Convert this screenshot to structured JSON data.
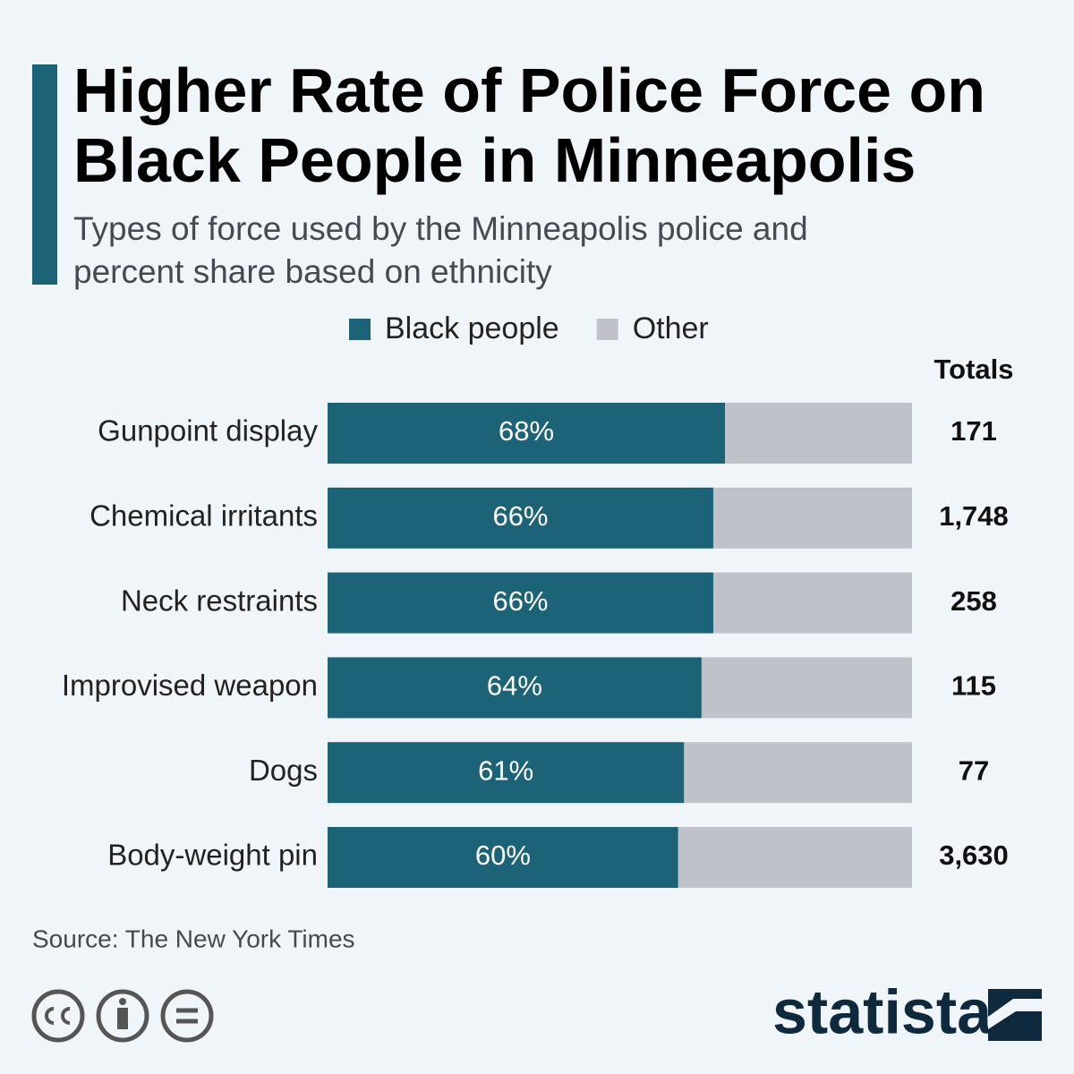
{
  "chart_data": {
    "type": "stacked_bar_horizontal",
    "title": "Higher Rate of Police Force on Black People in Minneapolis",
    "subtitle": "Types of force used by the Minneapolis police and percent share based on ethnicity",
    "categories": [
      "Gunpoint display",
      "Chemical irritants",
      "Neck restraints",
      "Improvised weapon",
      "Dogs",
      "Body-weight pin"
    ],
    "series": [
      {
        "name": "Black people",
        "color": "#1c6378",
        "values": [
          68,
          66,
          66,
          64,
          61,
          60
        ],
        "value_labels": [
          "68%",
          "66%",
          "66%",
          "64%",
          "61%",
          "60%"
        ]
      },
      {
        "name": "Other",
        "color": "#bfc3c9",
        "values": [
          32,
          34,
          34,
          36,
          39,
          40
        ]
      }
    ],
    "xlim": [
      0,
      100
    ],
    "totals": {
      "title": "Totals",
      "values": [
        171,
        1748,
        258,
        115,
        77,
        3630
      ],
      "value_labels": [
        "171",
        "1,748",
        "258",
        "115",
        "77",
        "3,630"
      ]
    },
    "source": "Source: The New York Times",
    "brand": "statista"
  }
}
